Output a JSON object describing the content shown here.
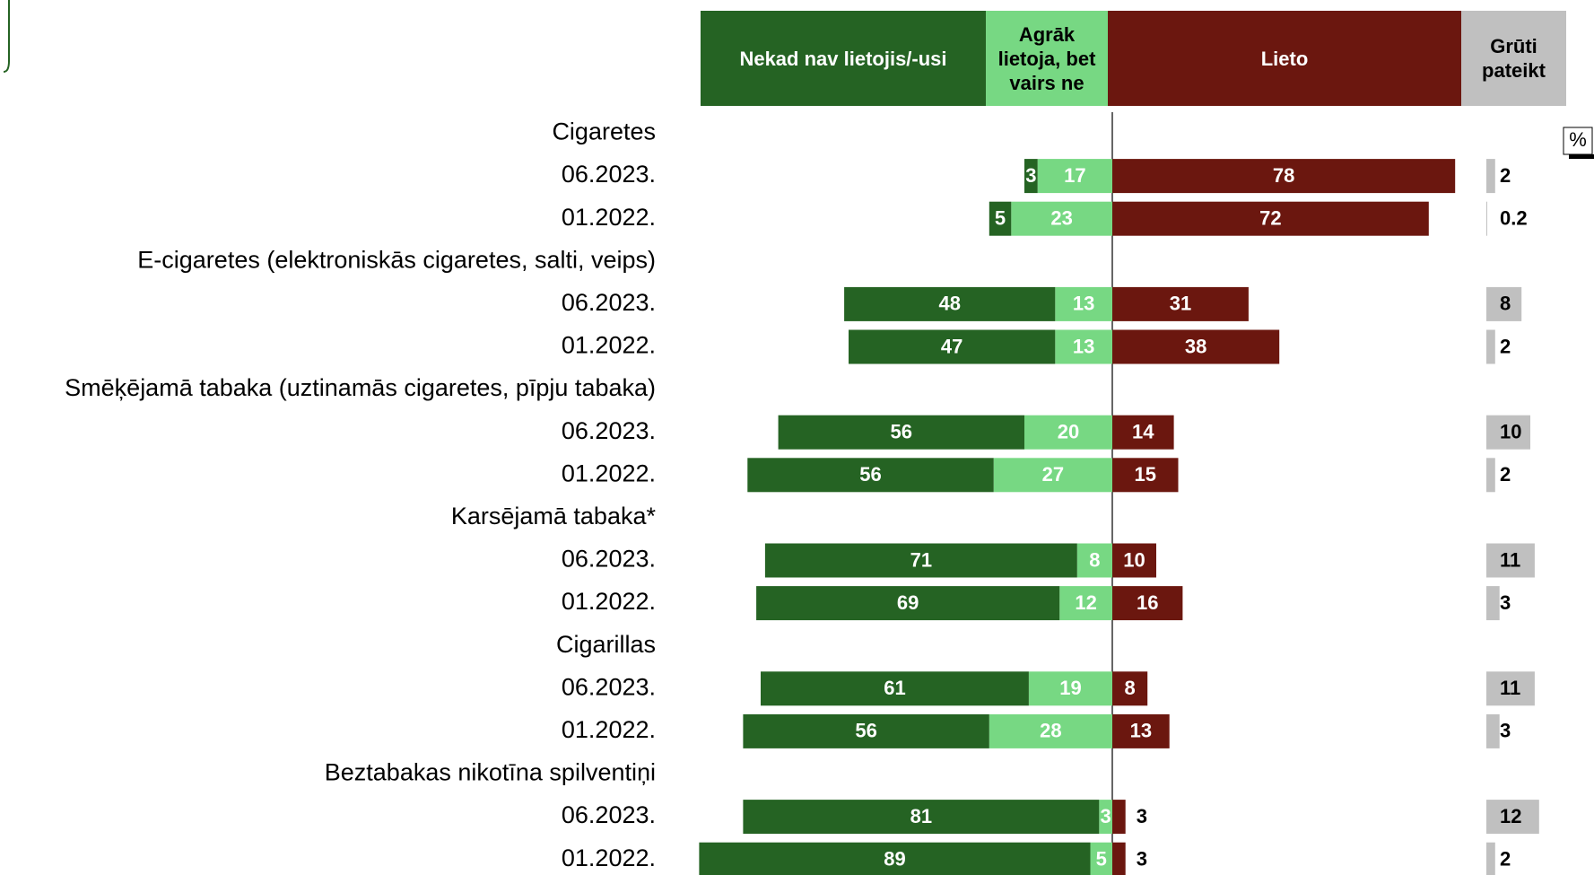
{
  "chart_data": {
    "type": "diverging_bar",
    "groups": [
      "Cigaretes",
      "E-cigaretes (elektroniskās cigaretes, salti, veips)",
      "Smēķējamā tabaka (uztinamās cigaretes, pīpju tabaka)",
      "Karsējamā tabaka*",
      "Cigarillas",
      "Beztabakas nikotīna spilventiņi"
    ],
    "categories": [
      "06.2023.",
      "01.2022.",
      "06.2023.",
      "01.2022.",
      "06.2023.",
      "01.2022.",
      "06.2023.",
      "01.2022.",
      "06.2023.",
      "01.2022.",
      "06.2023.",
      "01.2022."
    ],
    "series": [
      {
        "name": "Nekad nav lietojis/-usi",
        "color": "#256323",
        "values": [
          3,
          5,
          48,
          47,
          56,
          56,
          71,
          69,
          61,
          56,
          81,
          89
        ]
      },
      {
        "name": "Agrāk lietoja, bet vairs ne",
        "color": "#77d883",
        "values": [
          17,
          23,
          13,
          13,
          20,
          27,
          8,
          12,
          19,
          28,
          3,
          5
        ]
      },
      {
        "name": "Lieto",
        "color": "#6b170f",
        "values": [
          78,
          72,
          31,
          38,
          14,
          15,
          10,
          16,
          8,
          13,
          3,
          3
        ]
      },
      {
        "name": "Grūti pateikt",
        "color": "#c0c0c0",
        "values": [
          2,
          0.2,
          8,
          2,
          10,
          2,
          11,
          3,
          11,
          3,
          12,
          2
        ]
      }
    ],
    "unit_label": "%"
  }
}
